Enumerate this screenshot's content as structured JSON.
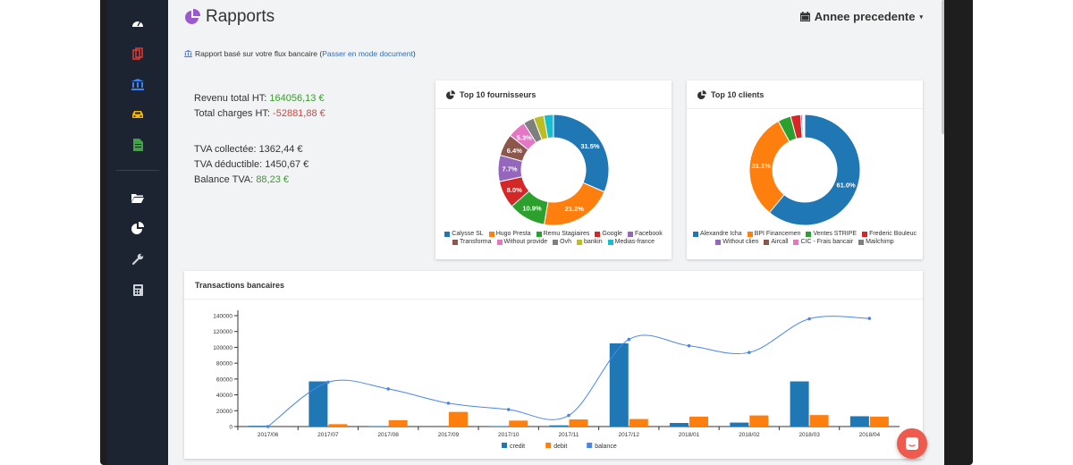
{
  "header": {
    "title": "Rapports",
    "period_label": "Annee precedente"
  },
  "subnote": {
    "prefix": "Rapport basé sur votre flux bancaire (",
    "link": "Passer en mode document",
    "suffix": ")"
  },
  "stats": {
    "revenu_label": "Revenu total HT:",
    "revenu_value": "164056,13 €",
    "charges_label": "Total charges HT:",
    "charges_value": "-52881,88 €",
    "tva_col_label": "TVA collectée:",
    "tva_col_value": "1362,44 €",
    "tva_ded_label": "TVA déductible:",
    "tva_ded_value": "1450,67 €",
    "balance_label": "Balance TVA:",
    "balance_value": "88,23 €"
  },
  "cards": {
    "fournisseurs_title": "Top 10 fournisseurs",
    "clients_title": "Top 10 clients",
    "transactions_title": "Transactions bancaires"
  },
  "sidebar": {
    "icons": [
      "dashboard-icon",
      "documents-icon",
      "bank-icon",
      "car-icon",
      "spreadsheet-icon",
      "folder-icon",
      "pie-chart-icon",
      "wrench-icon",
      "calculator-icon"
    ]
  },
  "chart_data": [
    {
      "type": "pie",
      "title": "Top 10 fournisseurs",
      "labels": [
        "Calysse SL",
        "Hugo Presta",
        "Remu Stagiaires",
        "Google",
        "Facebook",
        "Transforma",
        "Without provide",
        "Ovh",
        "bankin",
        "Medias-france"
      ],
      "values": [
        31.5,
        21.2,
        10.9,
        8.0,
        7.7,
        6.4,
        5.3,
        3.2,
        3.0,
        2.8
      ],
      "value_labels": [
        "31.5%",
        "21.2%",
        "10.9%",
        "8.0%",
        "7.7%",
        "6.4%",
        "5.3%",
        "",
        "",
        ""
      ],
      "colors": [
        "#1f77b4",
        "#ff7f0e",
        "#2ca02c",
        "#d62728",
        "#9467bd",
        "#8c564b",
        "#e377c2",
        "#7f7f7f",
        "#bcbd22",
        "#17becf"
      ]
    },
    {
      "type": "pie",
      "title": "Top 10 clients",
      "labels": [
        "Alexandre Icha",
        "BPI Financemen",
        "Ventes STRIPE",
        "Frederic Bouleuc",
        "Without clien",
        "Aircall",
        "CIC - Frais bancair",
        "Mailchimp"
      ],
      "values": [
        61.0,
        31.1,
        3.8,
        2.9,
        0.5,
        0.3,
        0.2,
        0.2
      ],
      "value_labels": [
        "61.0%",
        "31.1%",
        "",
        "",
        "",
        "",
        "",
        ""
      ],
      "colors": [
        "#1f77b4",
        "#ff7f0e",
        "#2ca02c",
        "#d62728",
        "#9467bd",
        "#8c564b",
        "#e377c2",
        "#7f7f7f"
      ]
    },
    {
      "type": "bar",
      "title": "Transactions bancaires",
      "categories": [
        "2017/06",
        "2017/07",
        "2017/08",
        "2017/09",
        "2017/10",
        "2017/11",
        "2017/12",
        "2018/01",
        "2018/02",
        "2018/03",
        "2018/04"
      ],
      "series": [
        {
          "name": "credit",
          "type": "bar",
          "color": "#1f77b4",
          "values": [
            1000,
            57000,
            500,
            0,
            500,
            1500,
            105000,
            4500,
            5000,
            57000,
            13000
          ]
        },
        {
          "name": "debit",
          "type": "bar",
          "color": "#ff7f0e",
          "values": [
            0,
            3000,
            8000,
            18500,
            7500,
            9000,
            9500,
            12500,
            14000,
            14500,
            12500
          ]
        },
        {
          "name": "balance",
          "type": "line",
          "color": "#4a86e8",
          "values": [
            0,
            56000,
            47500,
            29500,
            21500,
            14000,
            110000,
            102000,
            93500,
            136000,
            136500
          ]
        }
      ],
      "ylim": [
        0,
        140000
      ],
      "yticks": [
        0,
        20000,
        40000,
        60000,
        80000,
        100000,
        120000,
        140000
      ],
      "legend": "bottom"
    }
  ]
}
